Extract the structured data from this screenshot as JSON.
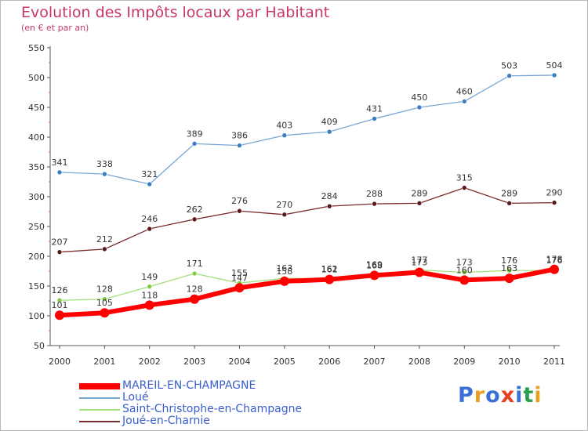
{
  "header": {
    "title": "Evolution des Impôts locaux par Habitant",
    "subtitle": "(en € et par an)"
  },
  "logo": {
    "text": "Proxiti",
    "colors": [
      "#3a6fd8",
      "#e8a020",
      "#3a6fd8",
      "#e84020",
      "#3a6fd8",
      "#2aa050",
      "#e8a020"
    ]
  },
  "chart_data": {
    "type": "line",
    "x": [
      "2000",
      "2001",
      "2002",
      "2003",
      "2004",
      "2005",
      "2006",
      "2007",
      "2008",
      "2009",
      "2010",
      "2011"
    ],
    "ylim": [
      50,
      550
    ],
    "yticks": [
      50,
      100,
      150,
      200,
      250,
      300,
      350,
      400,
      450,
      500,
      550
    ],
    "grid": false,
    "legend_position": "bottom-left",
    "series": [
      {
        "name": "MAREIL-EN-CHAMPAGNE",
        "color": "#ff0000",
        "marker": "#ff0000",
        "width": 6,
        "values": [
          101,
          105,
          118,
          128,
          147,
          158,
          161,
          168,
          173,
          160,
          163,
          178
        ]
      },
      {
        "name": "Loué",
        "color": "#79a7d4",
        "marker": "#3a7dc0",
        "width": 1.3,
        "values": [
          341,
          338,
          321,
          389,
          386,
          403,
          409,
          431,
          450,
          460,
          503,
          504
        ]
      },
      {
        "name": "Saint-Christophe-en-Champagne",
        "color": "#a4e07c",
        "marker": "#80cc40",
        "width": 1.3,
        "values": [
          126,
          128,
          149,
          171,
          155,
          163,
          162,
          169,
          177,
          173,
          176,
          176
        ]
      },
      {
        "name": "Joué-en-Charnie",
        "color": "#7a2a2a",
        "marker": "#5a1a1a",
        "width": 1.3,
        "values": [
          207,
          212,
          246,
          262,
          276,
          270,
          284,
          288,
          289,
          315,
          289,
          290
        ]
      }
    ]
  }
}
